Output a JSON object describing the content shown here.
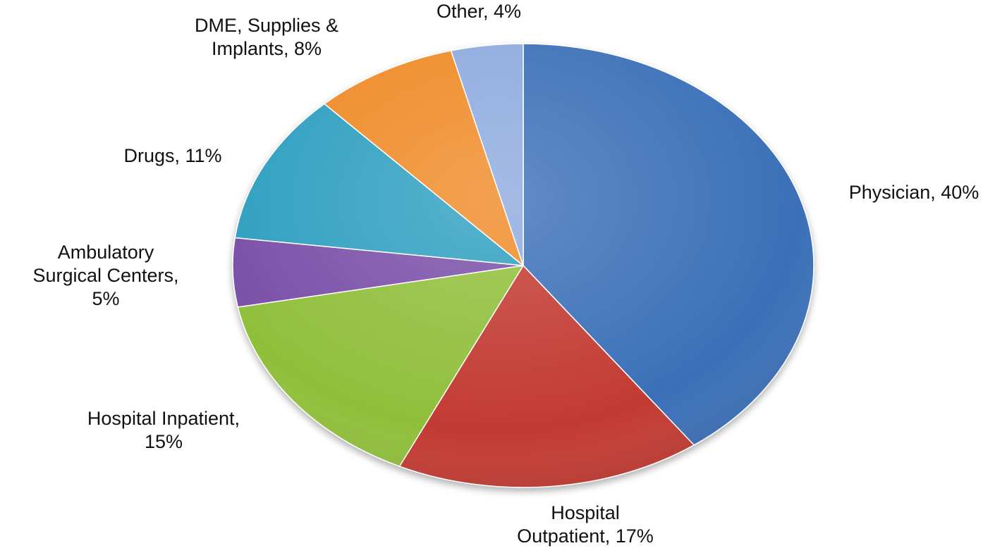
{
  "chart_data": {
    "type": "pie",
    "title": "",
    "slices": [
      {
        "label": "Physician, 40%",
        "lines": [
          "Physician, 40%"
        ],
        "value": 40,
        "color": "#3a6fb8"
      },
      {
        "label": "Hospital Outpatient, 17%",
        "lines": [
          "Hospital",
          "Outpatient, 17%"
        ],
        "value": 17,
        "color": "#c23a33"
      },
      {
        "label": "Hospital Inpatient, 15%",
        "lines": [
          "Hospital Inpatient,",
          "15%"
        ],
        "value": 15,
        "color": "#90bf3a"
      },
      {
        "label": "Ambulatory Surgical Centers, 5%",
        "lines": [
          "Ambulatory",
          "Surgical Centers,",
          "5%"
        ],
        "value": 5,
        "color": "#7a4fa8"
      },
      {
        "label": "Drugs, 11%",
        "lines": [
          "Drugs, 11%"
        ],
        "value": 11,
        "color": "#2e9fc0"
      },
      {
        "label": "DME, Supplies & Implants, 8%",
        "lines": [
          "DME, Supplies &",
          "Implants, 8%"
        ],
        "value": 8,
        "color": "#ef8a25"
      },
      {
        "label": "Other, 4%",
        "lines": [
          "Other, 4%"
        ],
        "value": 4,
        "color": "#8eaadf"
      }
    ],
    "start": "12 o'clock",
    "direction": "clockwise",
    "legend": "none",
    "data_labels": "outside"
  }
}
